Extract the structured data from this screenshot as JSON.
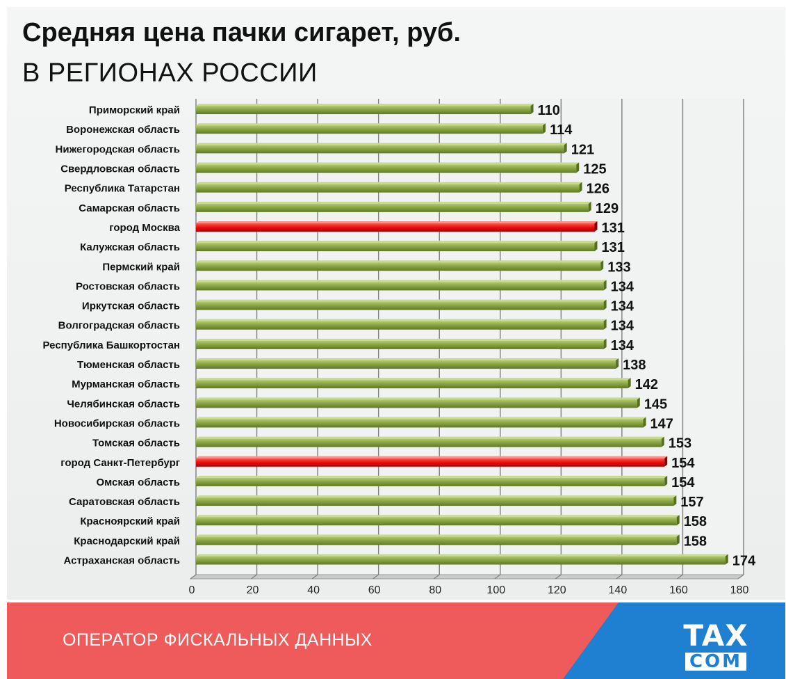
{
  "chart_data": {
    "type": "bar",
    "orientation": "horizontal",
    "title": "Средняя цена пачки сигарет, руб.",
    "subtitle": "В РЕГИОНАХ РОССИИ",
    "categories": [
      "Приморский край",
      "Воронежская область",
      "Нижегородская область",
      "Свердловская область",
      "Республика Татарстан",
      "Самарская область",
      "город Москва",
      "Калужская область",
      "Пермский край",
      "Ростовская  область",
      "Иркутская  область",
      "Волгоградская область",
      "Республика Башкортостан",
      "Тюменская область",
      "Мурманская область",
      "Челябинская область",
      "Новосибирская область",
      "Томская область",
      "город Санкт-Петербург",
      "Омская область",
      "Саратовская  область",
      "Красноярский край",
      "Краснодарский край",
      "Астраханская область"
    ],
    "values": [
      110,
      114,
      121,
      125,
      126,
      129,
      131,
      131,
      133,
      134,
      134,
      134,
      134,
      138,
      142,
      145,
      147,
      153,
      154,
      154,
      157,
      158,
      158,
      174
    ],
    "highlighted": [
      "город Москва",
      "город Санкт-Петербург"
    ],
    "xlim": [
      0,
      180
    ],
    "xticks": [
      0,
      20,
      40,
      60,
      80,
      100,
      120,
      140,
      160,
      180
    ],
    "grid": true,
    "colors": {
      "bar": "#8aa445",
      "highlight": "#ee1111",
      "grid": "#7d7d7d"
    }
  },
  "footer": {
    "operator_text": "ОПЕРАТОР ФИСКАЛЬНЫХ ДАННЫХ",
    "logo_top": "TAX",
    "logo_bottom": "COM"
  },
  "colors": {
    "footer_red": "#ef5a5a",
    "footer_blue": "#1f7fd0"
  }
}
